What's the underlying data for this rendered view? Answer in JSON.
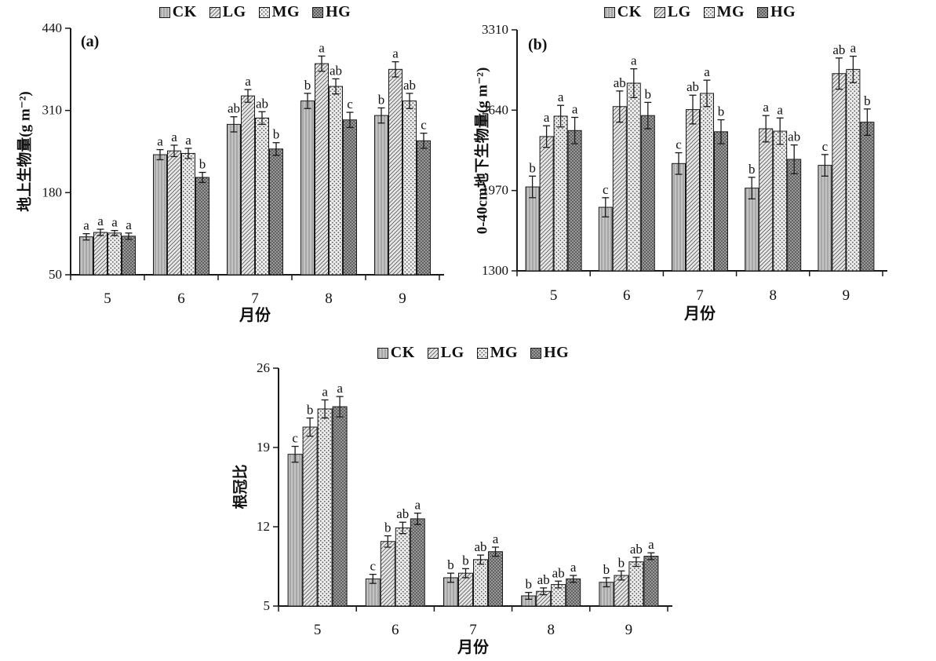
{
  "figure": {
    "background": "#ffffff",
    "series_names": [
      "CK",
      "LG",
      "MG",
      "HG"
    ],
    "months_axis_label": "月份"
  },
  "colors": {
    "axis": "#1a1a1a",
    "bar_outline": "#1a1a1a",
    "error_bar": "#1a1a1a",
    "ck_base": "#c3c3c3",
    "ck_line": "#8a8a8a",
    "lg_base": "#e9e9e9",
    "lg_line": "#6f6f6f",
    "mg_base": "#ececec",
    "mg_dot": "#5a5a5a",
    "hg_base": "#999999",
    "hg_dot": "#3b3b3b"
  },
  "chart_data": [
    {
      "id": "a",
      "type": "bar",
      "panel_label": "(a)",
      "title": "",
      "ylabel": "地上生物量(g m⁻²)",
      "xlabel": "月份",
      "ylim": [
        50,
        440
      ],
      "yticks": [
        50,
        180,
        310,
        440
      ],
      "categories": [
        "5",
        "6",
        "7",
        "8",
        "9"
      ],
      "legend_position": "top",
      "grid": false,
      "series": [
        {
          "name": "CK",
          "pattern": "vertical-lines",
          "values": [
            110,
            240,
            288,
            325,
            302
          ],
          "errors": [
            5,
            8,
            12,
            12,
            12
          ],
          "letters": [
            "a",
            "a",
            "ab",
            "b",
            "b"
          ]
        },
        {
          "name": "LG",
          "pattern": "diagonal-hatch",
          "values": [
            117,
            246,
            333,
            384,
            375
          ],
          "errors": [
            5,
            9,
            10,
            12,
            12
          ],
          "letters": [
            "a",
            "a",
            "a",
            "a",
            "a"
          ]
        },
        {
          "name": "MG",
          "pattern": "light-dots",
          "values": [
            116,
            242,
            298,
            348,
            325
          ],
          "errors": [
            4,
            8,
            10,
            12,
            12
          ],
          "letters": [
            "a",
            "a",
            "ab",
            "ab",
            "ab"
          ]
        },
        {
          "name": "HG",
          "pattern": "dark-dots",
          "values": [
            111,
            204,
            249,
            295,
            262
          ],
          "errors": [
            5,
            8,
            10,
            12,
            12
          ],
          "letters": [
            "a",
            "b",
            "b",
            "c",
            "c"
          ]
        }
      ]
    },
    {
      "id": "b",
      "type": "bar",
      "panel_label": "(b)",
      "title": "",
      "ylabel": "0-40cm地下生物量(g m⁻²)",
      "xlabel": "月份",
      "ylim": [
        1300,
        3310
      ],
      "yticks": [
        1300,
        1970,
        2640,
        3310
      ],
      "categories": [
        "5",
        "6",
        "7",
        "8",
        "9"
      ],
      "legend_position": "top",
      "grid": false,
      "series": [
        {
          "name": "CK",
          "pattern": "vertical-lines",
          "values": [
            2000,
            1830,
            2195,
            1990,
            2180
          ],
          "errors": [
            90,
            80,
            90,
            90,
            90
          ],
          "letters": [
            "b",
            "c",
            "c",
            "b",
            "c"
          ]
        },
        {
          "name": "LG",
          "pattern": "diagonal-hatch",
          "values": [
            2420,
            2670,
            2645,
            2485,
            2945
          ],
          "errors": [
            90,
            130,
            120,
            110,
            130
          ],
          "letters": [
            "a",
            "ab",
            "ab",
            "a",
            "ab"
          ]
        },
        {
          "name": "MG",
          "pattern": "light-dots",
          "values": [
            2590,
            2865,
            2780,
            2465,
            2980
          ],
          "errors": [
            90,
            120,
            110,
            110,
            110
          ],
          "letters": [
            "a",
            "a",
            "a",
            "a",
            "a"
          ]
        },
        {
          "name": "HG",
          "pattern": "dark-dots",
          "values": [
            2470,
            2595,
            2460,
            2230,
            2540
          ],
          "errors": [
            110,
            110,
            100,
            120,
            110
          ],
          "letters": [
            "a",
            "b",
            "b",
            "ab",
            "b"
          ]
        }
      ]
    },
    {
      "id": "c",
      "type": "bar",
      "panel_label": "",
      "title": "",
      "ylabel": "根冠比",
      "xlabel": "月份",
      "ylim": [
        5,
        26
      ],
      "yticks": [
        5,
        12,
        19,
        26
      ],
      "categories": [
        "5",
        "6",
        "7",
        "8",
        "9"
      ],
      "legend_position": "top",
      "grid": false,
      "series": [
        {
          "name": "CK",
          "pattern": "vertical-lines",
          "values": [
            18.4,
            7.4,
            7.5,
            5.9,
            7.1
          ],
          "errors": [
            0.7,
            0.4,
            0.4,
            0.3,
            0.4
          ],
          "letters": [
            "c",
            "c",
            "b",
            "b",
            "b"
          ]
        },
        {
          "name": "LG",
          "pattern": "diagonal-hatch",
          "values": [
            20.8,
            10.7,
            7.9,
            6.3,
            7.7
          ],
          "errors": [
            0.8,
            0.5,
            0.4,
            0.3,
            0.4
          ],
          "letters": [
            "b",
            "b",
            "b",
            "ab",
            "b"
          ]
        },
        {
          "name": "MG",
          "pattern": "light-dots",
          "values": [
            22.4,
            11.9,
            9.1,
            6.9,
            8.9
          ],
          "errors": [
            0.8,
            0.5,
            0.4,
            0.3,
            0.4
          ],
          "letters": [
            "a",
            "ab",
            "ab",
            "ab",
            "ab"
          ]
        },
        {
          "name": "HG",
          "pattern": "dark-dots",
          "values": [
            22.6,
            12.7,
            9.8,
            7.4,
            9.4
          ],
          "errors": [
            0.9,
            0.5,
            0.4,
            0.3,
            0.3
          ],
          "letters": [
            "a",
            "a",
            "a",
            "a",
            "a"
          ]
        }
      ]
    }
  ]
}
